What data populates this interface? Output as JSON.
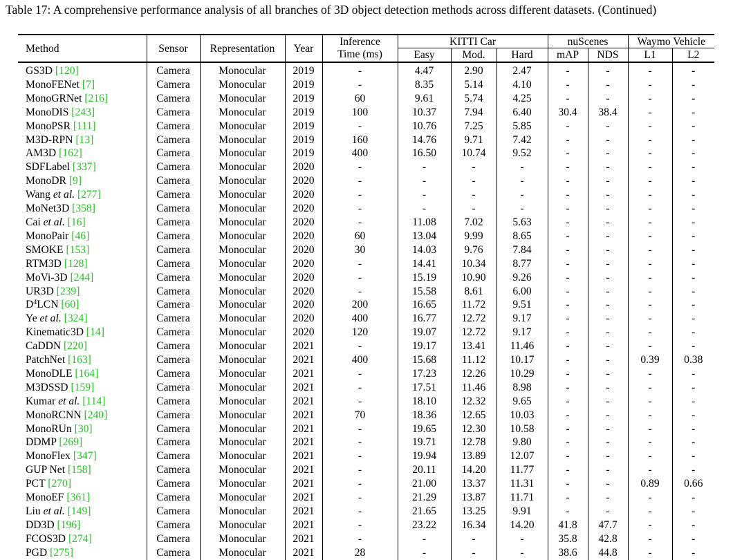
{
  "caption": "Table 17: A comprehensive performance analysis of all branches of 3D object detection methods across different datasets. (Continued)",
  "headers": {
    "method": "Method",
    "sensor": "Sensor",
    "representation": "Representation",
    "year": "Year",
    "inference_line1": "Inference",
    "inference_line2": "Time (ms)",
    "kitti_group": "KITTI Car",
    "kitti_easy": "Easy",
    "kitti_mod": "Mod.",
    "kitti_hard": "Hard",
    "nuscenes_group": "nuScenes",
    "nuscenes_map": "mAP",
    "nuscenes_nds": "NDS",
    "waymo_group": "Waymo Vehicle",
    "waymo_l1": "L1",
    "waymo_l2": "L2"
  },
  "colors": {
    "citation": "#1fc21f"
  },
  "rows": [
    {
      "name": "GS3D",
      "italic": "",
      "suffix": "",
      "ref": "[120]",
      "sensor": "Camera",
      "rep": "Monocular",
      "year": "2019",
      "time": "-",
      "easy": "4.47",
      "mod": "2.90",
      "hard": "2.47",
      "map": "-",
      "nds": "-",
      "l1": "-",
      "l2": "-"
    },
    {
      "name": "MonoFENet",
      "italic": "",
      "suffix": "",
      "ref": "[7]",
      "sensor": "Camera",
      "rep": "Monocular",
      "year": "2019",
      "time": "-",
      "easy": "8.35",
      "mod": "5.14",
      "hard": "4.10",
      "map": "-",
      "nds": "-",
      "l1": "-",
      "l2": "-"
    },
    {
      "name": "MonoGRNet",
      "italic": "",
      "suffix": "",
      "ref": "[216]",
      "sensor": "Camera",
      "rep": "Monocular",
      "year": "2019",
      "time": "60",
      "easy": "9.61",
      "mod": "5.74",
      "hard": "4.25",
      "map": "-",
      "nds": "-",
      "l1": "-",
      "l2": "-"
    },
    {
      "name": "MonoDIS",
      "italic": "",
      "suffix": "",
      "ref": "[243]",
      "sensor": "Camera",
      "rep": "Monocular",
      "year": "2019",
      "time": "100",
      "easy": "10.37",
      "mod": "7.94",
      "hard": "6.40",
      "map": "30.4",
      "nds": "38.4",
      "l1": "-",
      "l2": "-"
    },
    {
      "name": "MonoPSR",
      "italic": "",
      "suffix": "",
      "ref": "[111]",
      "sensor": "Camera",
      "rep": "Monocular",
      "year": "2019",
      "time": "-",
      "easy": "10.76",
      "mod": "7.25",
      "hard": "5.85",
      "map": "-",
      "nds": "-",
      "l1": "-",
      "l2": "-"
    },
    {
      "name": "M3D-RPN",
      "italic": "",
      "suffix": "",
      "ref": "[13]",
      "sensor": "Camera",
      "rep": "Monocular",
      "year": "2019",
      "time": "160",
      "easy": "14.76",
      "mod": "9.71",
      "hard": "7.42",
      "map": "-",
      "nds": "-",
      "l1": "-",
      "l2": "-"
    },
    {
      "name": "AM3D",
      "italic": "",
      "suffix": "",
      "ref": "[162]",
      "sensor": "Camera",
      "rep": "Monocular",
      "year": "2019",
      "time": "400",
      "easy": "16.50",
      "mod": "10.74",
      "hard": "9.52",
      "map": "-",
      "nds": "-",
      "l1": "-",
      "l2": "-"
    },
    {
      "name": "SDFLabel",
      "italic": "",
      "suffix": "",
      "ref": "[337]",
      "sensor": "Camera",
      "rep": "Monocular",
      "year": "2020",
      "time": "-",
      "easy": "-",
      "mod": "-",
      "hard": "-",
      "map": "-",
      "nds": "-",
      "l1": "-",
      "l2": "-"
    },
    {
      "name": "MonoDR",
      "italic": "",
      "suffix": "",
      "ref": "[9]",
      "sensor": "Camera",
      "rep": "Monocular",
      "year": "2020",
      "time": "-",
      "easy": "-",
      "mod": "-",
      "hard": "-",
      "map": "-",
      "nds": "-",
      "l1": "-",
      "l2": "-"
    },
    {
      "name": "Wang",
      "italic": "et al.",
      "suffix": "",
      "ref": "[277]",
      "sensor": "Camera",
      "rep": "Monocular",
      "year": "2020",
      "time": "-",
      "easy": "-",
      "mod": "-",
      "hard": "-",
      "map": "-",
      "nds": "-",
      "l1": "-",
      "l2": "-"
    },
    {
      "name": "MoNet3D",
      "italic": "",
      "suffix": "",
      "ref": "[358]",
      "sensor": "Camera",
      "rep": "Monocular",
      "year": "2020",
      "time": "-",
      "easy": "-",
      "mod": "-",
      "hard": "-",
      "map": "-",
      "nds": "-",
      "l1": "-",
      "l2": "-"
    },
    {
      "name": "Cai",
      "italic": "et al.",
      "suffix": "",
      "ref": "[16]",
      "sensor": "Camera",
      "rep": "Monocular",
      "year": "2020",
      "time": "-",
      "easy": "11.08",
      "mod": "7.02",
      "hard": "5.63",
      "map": "-",
      "nds": "-",
      "l1": "-",
      "l2": "-"
    },
    {
      "name": "MonoPair",
      "italic": "",
      "suffix": "",
      "ref": "[46]",
      "sensor": "Camera",
      "rep": "Monocular",
      "year": "2020",
      "time": "60",
      "easy": "13.04",
      "mod": "9.99",
      "hard": "8.65",
      "map": "-",
      "nds": "-",
      "l1": "-",
      "l2": "-"
    },
    {
      "name": "SMOKE",
      "italic": "",
      "suffix": "",
      "ref": "[153]",
      "sensor": "Camera",
      "rep": "Monocular",
      "year": "2020",
      "time": "30",
      "easy": "14.03",
      "mod": "9.76",
      "hard": "7.84",
      "map": "-",
      "nds": "-",
      "l1": "-",
      "l2": "-"
    },
    {
      "name": "RTM3D",
      "italic": "",
      "suffix": "",
      "ref": "[128]",
      "sensor": "Camera",
      "rep": "Monocular",
      "year": "2020",
      "time": "-",
      "easy": "14.41",
      "mod": "10.34",
      "hard": "8.77",
      "map": "-",
      "nds": "-",
      "l1": "-",
      "l2": "-"
    },
    {
      "name": "MoVi-3D",
      "italic": "",
      "suffix": "",
      "ref": "[244]",
      "sensor": "Camera",
      "rep": "Monocular",
      "year": "2020",
      "time": "-",
      "easy": "15.19",
      "mod": "10.90",
      "hard": "9.26",
      "map": "-",
      "nds": "-",
      "l1": "-",
      "l2": "-"
    },
    {
      "name": "UR3D",
      "italic": "",
      "suffix": "",
      "ref": "[239]",
      "sensor": "Camera",
      "rep": "Monocular",
      "year": "2020",
      "time": "-",
      "easy": "15.58",
      "mod": "8.61",
      "hard": "6.00",
      "map": "-",
      "nds": "-",
      "l1": "-",
      "l2": "-"
    },
    {
      "name": "D",
      "sup": "4",
      "italic": "",
      "suffix": "LCN",
      "ref": "[60]",
      "sensor": "Camera",
      "rep": "Monocular",
      "year": "2020",
      "time": "200",
      "easy": "16.65",
      "mod": "11.72",
      "hard": "9.51",
      "map": "-",
      "nds": "-",
      "l1": "-",
      "l2": "-"
    },
    {
      "name": "Ye",
      "italic": "et al.",
      "suffix": "",
      "ref": "[324]",
      "sensor": "Camera",
      "rep": "Monocular",
      "year": "2020",
      "time": "400",
      "easy": "16.77",
      "mod": "12.72",
      "hard": "9.17",
      "map": "-",
      "nds": "-",
      "l1": "-",
      "l2": "-"
    },
    {
      "name": "Kinematic3D",
      "italic": "",
      "suffix": "",
      "ref": "[14]",
      "sensor": "Camera",
      "rep": "Monocular",
      "year": "2020",
      "time": "120",
      "easy": "19.07",
      "mod": "12.72",
      "hard": "9.17",
      "map": "-",
      "nds": "-",
      "l1": "-",
      "l2": "-"
    },
    {
      "name": "CaDDN",
      "italic": "",
      "suffix": "",
      "ref": "[220]",
      "sensor": "Camera",
      "rep": "Monocular",
      "year": "2021",
      "time": "-",
      "easy": "19.17",
      "mod": "13.41",
      "hard": "11.46",
      "map": "-",
      "nds": "-",
      "l1": "-",
      "l2": "-"
    },
    {
      "name": "PatchNet",
      "italic": "",
      "suffix": "",
      "ref": "[163]",
      "sensor": "Camera",
      "rep": "Monocular",
      "year": "2021",
      "time": "400",
      "easy": "15.68",
      "mod": "11.12",
      "hard": "10.17",
      "map": "-",
      "nds": "-",
      "l1": "0.39",
      "l2": "0.38"
    },
    {
      "name": "MonoDLE",
      "italic": "",
      "suffix": "",
      "ref": "[164]",
      "sensor": "Camera",
      "rep": "Monocular",
      "year": "2021",
      "time": "-",
      "easy": "17.23",
      "mod": "12.26",
      "hard": "10.29",
      "map": "-",
      "nds": "-",
      "l1": "-",
      "l2": "-"
    },
    {
      "name": "M3DSSD",
      "italic": "",
      "suffix": "",
      "ref": "[159]",
      "sensor": "Camera",
      "rep": "Monocular",
      "year": "2021",
      "time": "-",
      "easy": "17.51",
      "mod": "11.46",
      "hard": "8.98",
      "map": "-",
      "nds": "-",
      "l1": "-",
      "l2": "-"
    },
    {
      "name": "Kumar",
      "italic": "et al.",
      "suffix": "",
      "ref": "[114]",
      "sensor": "Camera",
      "rep": "Monocular",
      "year": "2021",
      "time": "-",
      "easy": "18.10",
      "mod": "12.32",
      "hard": "9.65",
      "map": "-",
      "nds": "-",
      "l1": "-",
      "l2": "-"
    },
    {
      "name": "MonoRCNN",
      "italic": "",
      "suffix": "",
      "ref": "[240]",
      "sensor": "Camera",
      "rep": "Monocular",
      "year": "2021",
      "time": "70",
      "easy": "18.36",
      "mod": "12.65",
      "hard": "10.03",
      "map": "-",
      "nds": "-",
      "l1": "-",
      "l2": "-"
    },
    {
      "name": "MonoRUn",
      "italic": "",
      "suffix": "",
      "ref": "[30]",
      "sensor": "Camera",
      "rep": "Monocular",
      "year": "2021",
      "time": "-",
      "easy": "19.65",
      "mod": "12.30",
      "hard": "10.58",
      "map": "-",
      "nds": "-",
      "l1": "-",
      "l2": "-"
    },
    {
      "name": "DDMP",
      "italic": "",
      "suffix": "",
      "ref": "[269]",
      "sensor": "Camera",
      "rep": "Monocular",
      "year": "2021",
      "time": "-",
      "easy": "19.71",
      "mod": "12.78",
      "hard": "9.80",
      "map": "-",
      "nds": "-",
      "l1": "-",
      "l2": "-"
    },
    {
      "name": "MonoFlex",
      "italic": "",
      "suffix": "",
      "ref": "[347]",
      "sensor": "Camera",
      "rep": "Monocular",
      "year": "2021",
      "time": "-",
      "easy": "19.94",
      "mod": "13.89",
      "hard": "12.07",
      "map": "-",
      "nds": "-",
      "l1": "-",
      "l2": "-"
    },
    {
      "name": "GUP Net",
      "italic": "",
      "suffix": "",
      "ref": "[158]",
      "sensor": "Camera",
      "rep": "Monocular",
      "year": "2021",
      "time": "-",
      "easy": "20.11",
      "mod": "14.20",
      "hard": "11.77",
      "map": "-",
      "nds": "-",
      "l1": "-",
      "l2": "-"
    },
    {
      "name": "PCT",
      "italic": "",
      "suffix": "",
      "ref": "[270]",
      "sensor": "Camera",
      "rep": "Monocular",
      "year": "2021",
      "time": "-",
      "easy": "21.00",
      "mod": "13.37",
      "hard": "11.31",
      "map": "-",
      "nds": "-",
      "l1": "0.89",
      "l2": "0.66"
    },
    {
      "name": "MonoEF",
      "italic": "",
      "suffix": "",
      "ref": "[361]",
      "sensor": "Camera",
      "rep": "Monocular",
      "year": "2021",
      "time": "-",
      "easy": "21.29",
      "mod": "13.87",
      "hard": "11.71",
      "map": "-",
      "nds": "-",
      "l1": "-",
      "l2": "-"
    },
    {
      "name": "Liu",
      "italic": "et al.",
      "suffix": "",
      "ref": "[149]",
      "sensor": "Camera",
      "rep": "Monocular",
      "year": "2021",
      "time": "-",
      "easy": "21.65",
      "mod": "13.25",
      "hard": "9.91",
      "map": "-",
      "nds": "-",
      "l1": "-",
      "l2": "-"
    },
    {
      "name": "DD3D",
      "italic": "",
      "suffix": "",
      "ref": "[196]",
      "sensor": "Camera",
      "rep": "Monocular",
      "year": "2021",
      "time": "-",
      "easy": "23.22",
      "mod": "16.34",
      "hard": "14.20",
      "map": "41.8",
      "nds": "47.7",
      "l1": "-",
      "l2": "-"
    },
    {
      "name": "FCOS3D",
      "italic": "",
      "suffix": "",
      "ref": "[274]",
      "sensor": "Camera",
      "rep": "Monocular",
      "year": "2021",
      "time": "-",
      "easy": "-",
      "mod": "-",
      "hard": "-",
      "map": "35.8",
      "nds": "42.8",
      "l1": "-",
      "l2": "-"
    },
    {
      "name": "PGD",
      "italic": "",
      "suffix": "",
      "ref": "[275]",
      "sensor": "Camera",
      "rep": "Monocular",
      "year": "2021",
      "time": "28",
      "easy": "-",
      "mod": "-",
      "hard": "-",
      "map": "38.6",
      "nds": "44.8",
      "l1": "-",
      "l2": "-"
    }
  ]
}
